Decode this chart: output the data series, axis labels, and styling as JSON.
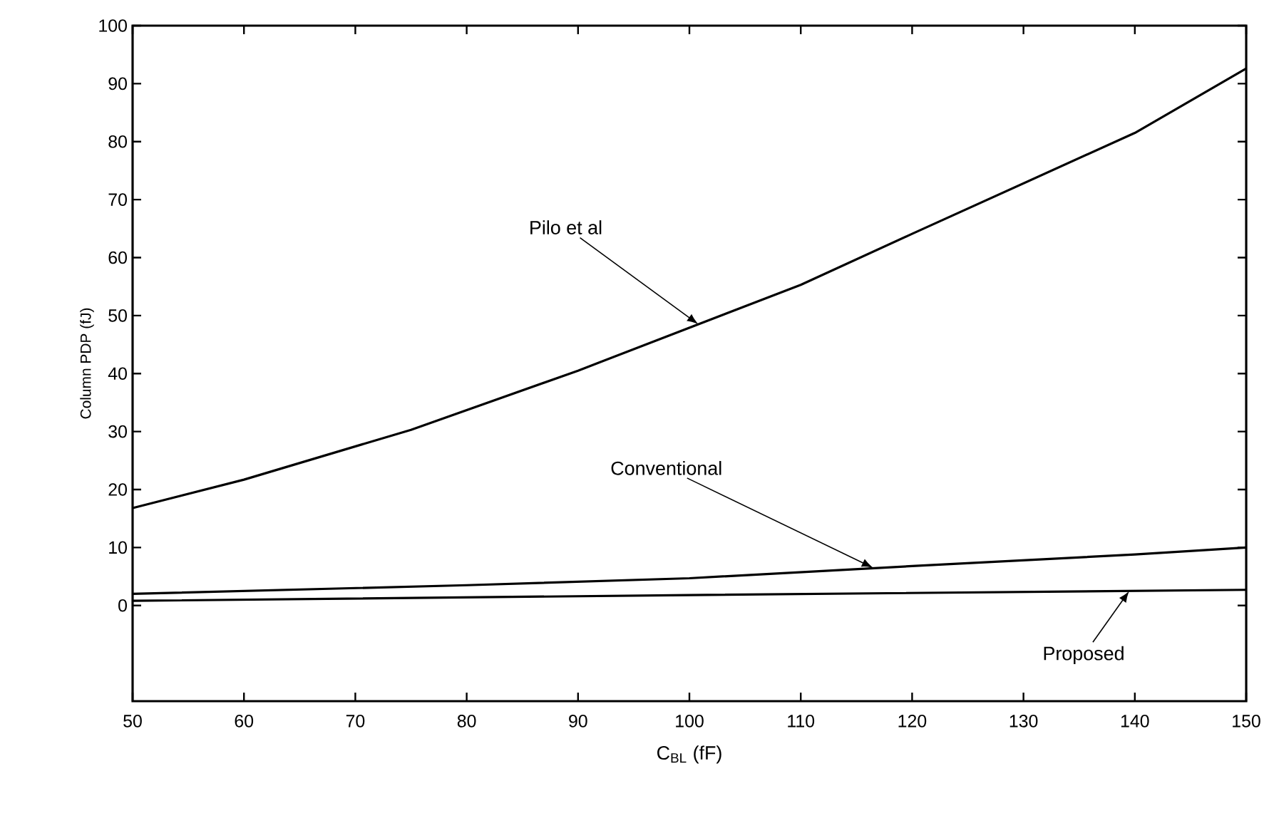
{
  "chart_data": {
    "type": "line",
    "xlabel": "C$_{BL}$ (fF)",
    "ylabel": "Column PDP (fJ)",
    "xlim": [
      50,
      150
    ],
    "xticks": [
      50,
      60,
      70,
      80,
      90,
      100,
      110,
      120,
      130,
      140,
      150
    ],
    "ylim": [
      -16.5,
      100
    ],
    "yticks": [
      0,
      10,
      20,
      30,
      40,
      50,
      60,
      70,
      80,
      90,
      100
    ],
    "grid": false,
    "marker": "none",
    "line_style": "solid",
    "series": [
      {
        "color": "#000000",
        "x": [
          50,
          60,
          75,
          90,
          110,
          120,
          140,
          150
        ],
        "values": [
          16.8,
          21.7,
          30.3,
          40.5,
          55.3,
          64.1,
          81.5,
          92.6
        ]
      },
      {
        "color": "#000000",
        "x": [
          50,
          80,
          100,
          120,
          140,
          150
        ],
        "values": [
          2.0,
          3.5,
          4.7,
          6.8,
          8.8,
          10.0
        ]
      },
      {
        "color": "#000000",
        "x": [
          50,
          100,
          150
        ],
        "values": [
          0.8,
          1.8,
          2.7
        ]
      }
    ],
    "annotations": [
      {
        "text": "Pilo et al",
        "x": 100.8,
        "y": 48.5
      },
      {
        "text": "Conventional",
        "x": 116.5,
        "y": 6.5
      },
      {
        "text": "Proposed",
        "x": 139.5,
        "y": 2.5
      }
    ]
  }
}
